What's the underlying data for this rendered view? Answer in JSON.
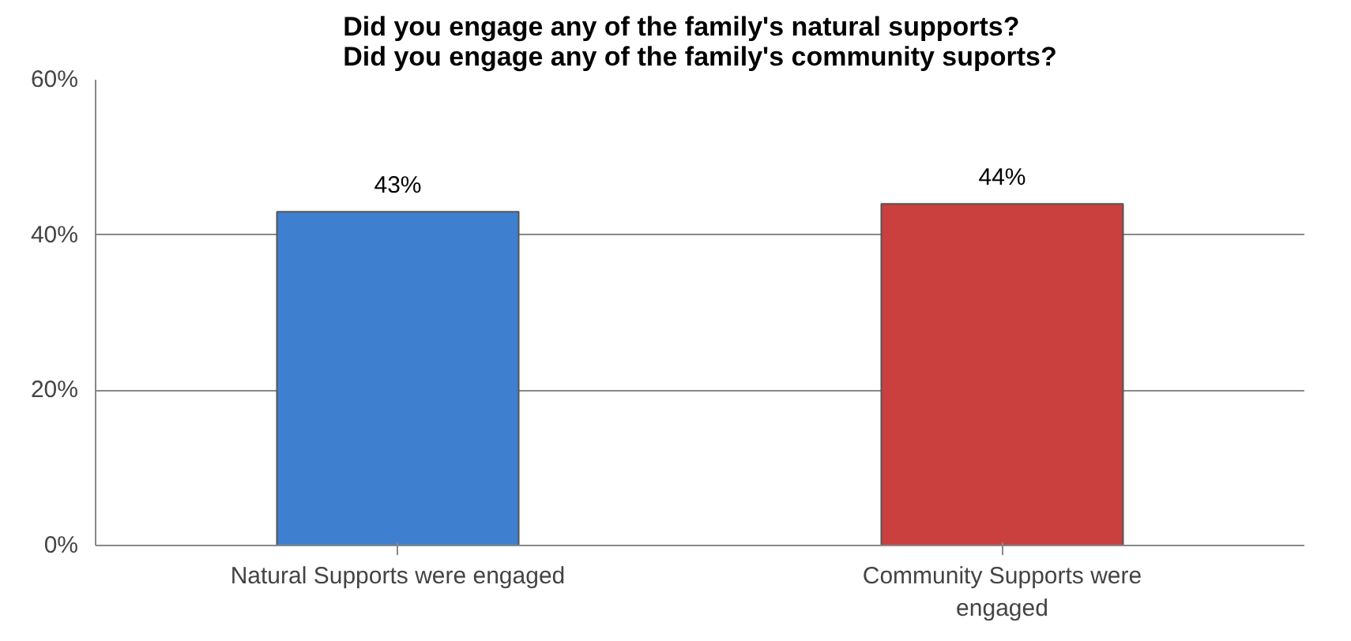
{
  "chart_data": {
    "type": "bar",
    "title": "Did you engage any of the family's natural supports?\nDid you engage any of the family's community suports?",
    "categories": [
      "Natural Supports were engaged",
      "Community Supports were engaged"
    ],
    "values": [
      43,
      44
    ],
    "colors": [
      "#3f7fcf",
      "#c9403e"
    ],
    "ylim": [
      0,
      60
    ],
    "yticks": [
      {
        "value": 0,
        "label": "0%"
      },
      {
        "value": 20,
        "label": "20%"
      },
      {
        "value": 40,
        "label": "40%"
      },
      {
        "value": 60,
        "label": "60%"
      }
    ],
    "value_labels": [
      "43%",
      "44%"
    ],
    "grid": "y"
  }
}
